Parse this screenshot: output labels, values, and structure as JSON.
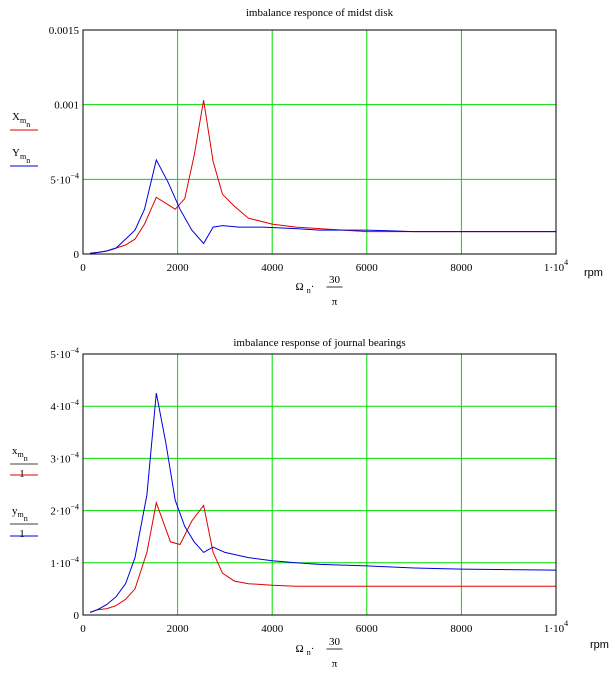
{
  "unit_label": "rpm",
  "chart_data": [
    {
      "type": "line",
      "title": "imbalance responce of midst disk",
      "xlim": [
        0,
        10000
      ],
      "ylim": [
        0,
        0.0015
      ],
      "x_ticks": [
        {
          "value": 0,
          "label": "0"
        },
        {
          "value": 2000,
          "label": "2000"
        },
        {
          "value": 4000,
          "label": "4000"
        },
        {
          "value": 6000,
          "label": "6000"
        },
        {
          "value": 8000,
          "label": "8000"
        },
        {
          "value": 10000,
          "label": "1·10",
          "sup": "4"
        }
      ],
      "y_ticks": [
        {
          "value": 0,
          "label": "0"
        },
        {
          "value": 0.0005,
          "label": "5·10",
          "sup": "−4"
        },
        {
          "value": 0.001,
          "label": "0.001"
        },
        {
          "value": 0.0015,
          "label": "0.0015"
        }
      ],
      "grid": true,
      "xlabel": {
        "main": "Ω",
        "sub": "n",
        "dot": "·",
        "num": "30",
        "den": "π"
      },
      "series": [
        {
          "name": "X",
          "sub1": "m",
          "sub2": "n",
          "color": "#e00000",
          "x": [
            150,
            300,
            500,
            700,
            900,
            1100,
            1300,
            1550,
            1800,
            1950,
            2150,
            2350,
            2550,
            2750,
            2950,
            3200,
            3500,
            4000,
            4500,
            5000,
            5500,
            6000,
            7000,
            8000,
            9000,
            10000
          ],
          "y": [
            5e-06,
            1e-05,
            2e-05,
            4e-05,
            6e-05,
            0.0001,
            0.0002,
            0.00038,
            0.00033,
            0.0003,
            0.00037,
            0.00066,
            0.00103,
            0.00062,
            0.0004,
            0.00032,
            0.00024,
            0.0002,
            0.00018,
            0.00017,
            0.00016,
            0.00015,
            0.00015,
            0.00015,
            0.00015,
            0.00015
          ]
        },
        {
          "name": "Y",
          "sub1": "m",
          "sub2": "n",
          "color": "#0000e0",
          "x": [
            150,
            300,
            500,
            700,
            900,
            1100,
            1300,
            1550,
            1800,
            2050,
            2300,
            2550,
            2750,
            2950,
            3300,
            3800,
            4500,
            5000,
            6000,
            7000,
            8000,
            9000,
            10000
          ],
          "y": [
            5e-06,
            1e-05,
            2e-05,
            4e-05,
            0.0001,
            0.00016,
            0.0003,
            0.00063,
            0.00048,
            0.0003,
            0.00016,
            7e-05,
            0.00018,
            0.00019,
            0.00018,
            0.00018,
            0.00017,
            0.00016,
            0.00016,
            0.00015,
            0.00015,
            0.00015,
            0.00015
          ]
        }
      ]
    },
    {
      "type": "line",
      "title": "imbalance response of journal bearings",
      "xlim": [
        0,
        10000
      ],
      "ylim": [
        0,
        0.0005
      ],
      "x_ticks": [
        {
          "value": 0,
          "label": "0"
        },
        {
          "value": 2000,
          "label": "2000"
        },
        {
          "value": 4000,
          "label": "4000"
        },
        {
          "value": 6000,
          "label": "6000"
        },
        {
          "value": 8000,
          "label": "8000"
        },
        {
          "value": 10000,
          "label": "1·10",
          "sup": "4"
        }
      ],
      "y_ticks": [
        {
          "value": 0,
          "label": "0"
        },
        {
          "value": 0.0001,
          "label": "1·10",
          "sup": "−4"
        },
        {
          "value": 0.0002,
          "label": "2·10",
          "sup": "−4"
        },
        {
          "value": 0.0003,
          "label": "3·10",
          "sup": "−4"
        },
        {
          "value": 0.0004,
          "label": "4·10",
          "sup": "−4"
        },
        {
          "value": 0.0005,
          "label": "5·10",
          "sup": "−4"
        }
      ],
      "grid": true,
      "xlabel": {
        "main": "Ω",
        "sub": "n",
        "dot": "·",
        "num": "30",
        "den": "π"
      },
      "series": [
        {
          "name": "x",
          "sub1": "m",
          "sub2": "n",
          "den": "1",
          "color": "#e00000",
          "x": [
            150,
            300,
            500,
            700,
            900,
            1100,
            1350,
            1550,
            1850,
            2050,
            2300,
            2550,
            2750,
            2950,
            3200,
            3500,
            4000,
            4500,
            5000,
            6000,
            7000,
            8000,
            9000,
            10000
          ],
          "y": [
            5e-06,
            1e-05,
            1.2e-05,
            1.8e-05,
            3e-05,
            5e-05,
            0.00012,
            0.000215,
            0.00014,
            0.000135,
            0.00018,
            0.00021,
            0.00012,
            8e-05,
            6.5e-05,
            6e-05,
            5.7e-05,
            5.5e-05,
            5.5e-05,
            5.5e-05,
            5.5e-05,
            5.5e-05,
            5.5e-05,
            5.5e-05
          ]
        },
        {
          "name": "y",
          "sub1": "m",
          "sub2": "n",
          "den": "1",
          "color": "#0000e0",
          "x": [
            150,
            300,
            500,
            700,
            900,
            1100,
            1350,
            1550,
            1750,
            1950,
            2150,
            2350,
            2550,
            2750,
            3000,
            3500,
            4000,
            4500,
            5000,
            6000,
            7000,
            8000,
            9000,
            10000
          ],
          "y": [
            5e-06,
            1e-05,
            2e-05,
            3.5e-05,
            6e-05,
            0.00011,
            0.00023,
            0.000425,
            0.00033,
            0.00022,
            0.00017,
            0.00014,
            0.00012,
            0.00013,
            0.00012,
            0.00011,
            0.000104,
            0.0001,
            9.7e-05,
            9.4e-05,
            9e-05,
            8.8e-05,
            8.7e-05,
            8.6e-05
          ]
        }
      ]
    }
  ]
}
